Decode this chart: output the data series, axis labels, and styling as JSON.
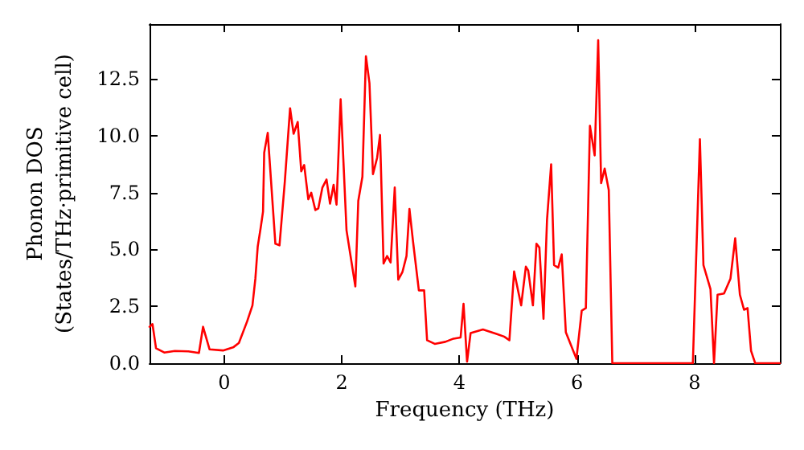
{
  "chart_data": {
    "type": "line",
    "xlabel": "Frequency (THz)",
    "ylabel": "Phonon DOS\n(States/THz·primitive cell)",
    "xlim": [
      -1.27,
      9.45
    ],
    "ylim": [
      0,
      14.9
    ],
    "xticks": [
      0,
      2,
      4,
      6,
      8
    ],
    "yticks": [
      {
        "value": 0,
        "label": "0.0"
      },
      {
        "value": 2.5,
        "label": "2.5"
      },
      {
        "value": 5,
        "label": "5.0"
      },
      {
        "value": 7.5,
        "label": "7.5"
      },
      {
        "value": 10,
        "label": "10.0"
      },
      {
        "value": 12.5,
        "label": "12.5"
      }
    ],
    "grid": false,
    "marker": "none",
    "line_style": "solid",
    "series": [
      {
        "color": "#ff0000",
        "x": [
          -1.27,
          -1.22,
          -1.16,
          -1.02,
          -0.84,
          -0.61,
          -0.43,
          -0.36,
          -0.25,
          -0.02,
          0.16,
          0.25,
          0.39,
          0.48,
          0.53,
          0.57,
          0.62,
          0.66,
          0.68,
          0.74,
          0.87,
          0.94,
          1.03,
          1.12,
          1.18,
          1.25,
          1.31,
          1.36,
          1.43,
          1.48,
          1.55,
          1.6,
          1.67,
          1.74,
          1.8,
          1.86,
          1.91,
          1.98,
          2.08,
          2.23,
          2.28,
          2.35,
          2.41,
          2.47,
          2.53,
          2.6,
          2.65,
          2.71,
          2.77,
          2.83,
          2.9,
          2.96,
          3.03,
          3.1,
          3.15,
          3.21,
          3.31,
          3.4,
          3.45,
          3.58,
          3.76,
          3.9,
          4.02,
          4.07,
          4.13,
          4.19,
          4.4,
          4.63,
          4.76,
          4.85,
          4.93,
          5.05,
          5.13,
          5.17,
          5.25,
          5.31,
          5.36,
          5.43,
          5.49,
          5.56,
          5.61,
          5.68,
          5.74,
          5.81,
          5.9,
          5.99,
          6.08,
          6.15,
          6.22,
          6.3,
          6.36,
          6.41,
          6.47,
          6.54,
          6.6,
          7.97,
          8.09,
          8.15,
          8.27,
          8.33,
          8.39,
          8.5,
          8.61,
          8.69,
          8.77,
          8.84,
          8.9,
          8.96,
          9.03,
          9.45
        ],
        "values": [
          1.6,
          1.72,
          0.66,
          0.47,
          0.54,
          0.52,
          0.45,
          1.6,
          0.61,
          0.56,
          0.71,
          0.89,
          1.84,
          2.54,
          3.72,
          5.13,
          5.95,
          6.66,
          9.25,
          10.12,
          5.25,
          5.18,
          7.96,
          11.2,
          10.08,
          10.6,
          8.43,
          8.71,
          7.2,
          7.49,
          6.73,
          6.8,
          7.72,
          8.07,
          7.01,
          7.84,
          6.97,
          11.6,
          5.84,
          3.37,
          7.13,
          8.19,
          13.49,
          12.31,
          8.31,
          9.02,
          10.03,
          4.38,
          4.71,
          4.43,
          7.72,
          3.67,
          4.0,
          4.71,
          6.78,
          5.37,
          3.2,
          3.2,
          1.01,
          0.85,
          0.94,
          1.08,
          1.13,
          2.61,
          0.07,
          1.32,
          1.48,
          1.29,
          1.17,
          1.01,
          4.03,
          2.54,
          4.24,
          4.07,
          2.54,
          5.25,
          5.08,
          1.95,
          6.31,
          8.74,
          4.31,
          4.2,
          4.78,
          1.36,
          0.78,
          0.19,
          2.31,
          2.42,
          10.43,
          9.13,
          14.19,
          7.91,
          8.55,
          7.61,
          0,
          0,
          9.84,
          4.31,
          3.25,
          0,
          3.01,
          3.06,
          3.72,
          5.49,
          3.01,
          2.35,
          2.42,
          0.54,
          0,
          0
        ]
      }
    ]
  }
}
